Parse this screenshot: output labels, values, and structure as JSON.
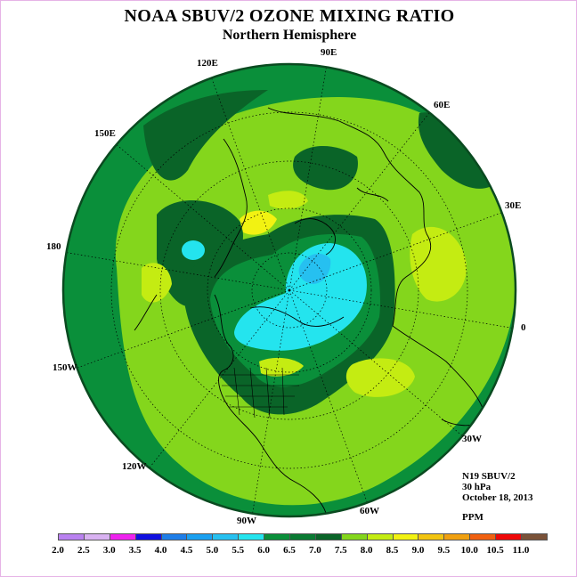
{
  "header": {
    "title": "NOAA SBUV/2 OZONE MIXING RATIO",
    "subtitle": "Northern Hemisphere"
  },
  "longitude_labels": [
    "90E",
    "60E",
    "30E",
    "0",
    "30W",
    "60W",
    "90W",
    "120W",
    "150W",
    "180",
    "150E",
    "120E"
  ],
  "info": {
    "satellite": "N19 SBUV/2",
    "level": "30 hPa",
    "date": "October 18, 2013",
    "units": "PPM"
  },
  "colorbar": {
    "ticks": [
      "2.0",
      "2.5",
      "3.0",
      "3.5",
      "4.0",
      "4.5",
      "5.0",
      "5.5",
      "6.0",
      "6.5",
      "7.0",
      "7.5",
      "8.0",
      "8.5",
      "9.0",
      "9.5",
      "10.0",
      "10.5",
      "11.0"
    ],
    "colors": [
      "#b981f0",
      "#d9b2f2",
      "#ee22ee",
      "#1010e0",
      "#1e7ee8",
      "#1aa0f0",
      "#26c0f0",
      "#24e4ee",
      "#0a8f3a",
      "#0a7a32",
      "#0a6428",
      "#84d61c",
      "#c4ec12",
      "#f2f212",
      "#f2c410",
      "#f0a010",
      "#f06010",
      "#ee0808",
      "#7a5238"
    ]
  },
  "colors": {
    "ocean_ring": "#0a8f3a",
    "band_dark": "#0a6428",
    "midlat": "#84d61c",
    "highlight": "#c4ec12",
    "yellow": "#f2f212",
    "polar_low": "#24e4ee",
    "polar_core": "#26c0f0"
  }
}
